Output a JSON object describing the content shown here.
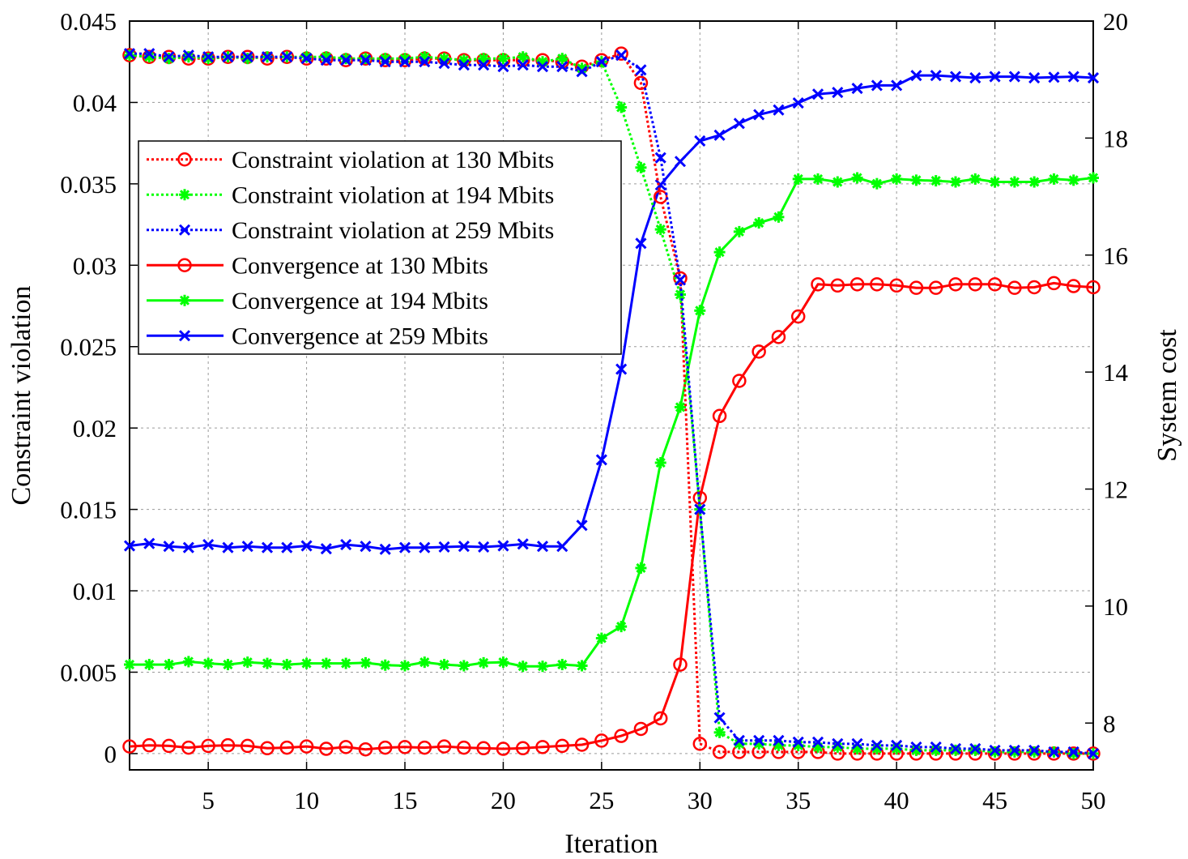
{
  "chart_data": {
    "type": "line",
    "xlabel": "Iteration",
    "ylabel_left": "Constraint violation",
    "ylabel_right": "System cost",
    "xlim": [
      1,
      50
    ],
    "ylim_left": [
      -0.001,
      0.045
    ],
    "ylim_right": [
      7.2,
      20
    ],
    "x_ticks": [
      5,
      10,
      15,
      20,
      25,
      30,
      35,
      40,
      45,
      50
    ],
    "x_tick_labels": [
      "5",
      "10",
      "15",
      "20",
      "25",
      "30",
      "35",
      "40",
      "45",
      "50"
    ],
    "y_left_ticks": [
      0,
      0.005,
      0.01,
      0.015,
      0.02,
      0.025,
      0.03,
      0.035,
      0.04,
      0.045
    ],
    "y_left_tick_labels": [
      "0",
      "0.005",
      "0.01",
      "0.015",
      "0.02",
      "0.025",
      "0.03",
      "0.035",
      "0.04",
      "0.045"
    ],
    "y_right_ticks": [
      8,
      10,
      12,
      14,
      16,
      18,
      20
    ],
    "y_right_tick_labels": [
      "8",
      "10",
      "12",
      "14",
      "16",
      "18",
      "20"
    ],
    "grid": true,
    "legend_position": "upper-left",
    "x": [
      1,
      2,
      3,
      4,
      5,
      6,
      7,
      8,
      9,
      10,
      11,
      12,
      13,
      14,
      15,
      16,
      17,
      18,
      19,
      20,
      21,
      22,
      23,
      24,
      25,
      26,
      27,
      28,
      29,
      30,
      31,
      32,
      33,
      34,
      35,
      36,
      37,
      38,
      39,
      40,
      41,
      42,
      43,
      44,
      45,
      46,
      47,
      48,
      49,
      50
    ],
    "series": [
      {
        "name": "Constraint violation at 130 Mbits",
        "axis": "left",
        "color": "#ff0000",
        "style": "dotted",
        "marker": "circle",
        "values": [
          0.0429,
          0.0428,
          0.0428,
          0.0427,
          0.0427,
          0.0428,
          0.0428,
          0.0427,
          0.0428,
          0.0427,
          0.0427,
          0.0426,
          0.0427,
          0.0426,
          0.0426,
          0.0427,
          0.0427,
          0.0426,
          0.0426,
          0.0426,
          0.0426,
          0.0426,
          0.0425,
          0.0422,
          0.0426,
          0.043,
          0.0412,
          0.0342,
          0.0292,
          0.0006,
          0.0001,
          0.0001,
          0.0001,
          0.0001,
          0.0001,
          0.0001,
          0.0,
          0.0,
          0.0,
          0.0,
          0.0,
          0.0,
          0.0,
          0.0,
          0.0,
          0.0,
          0.0,
          0.0,
          0.0,
          0.0
        ]
      },
      {
        "name": "Constraint violation at 194 Mbits",
        "axis": "left",
        "color": "#00ff00",
        "style": "dotted",
        "marker": "star",
        "values": [
          0.0429,
          0.0428,
          0.0427,
          0.0428,
          0.0427,
          0.0428,
          0.0427,
          0.0428,
          0.0428,
          0.0428,
          0.0428,
          0.0427,
          0.0427,
          0.0427,
          0.0427,
          0.0428,
          0.0427,
          0.0426,
          0.0427,
          0.0427,
          0.0428,
          0.0425,
          0.0427,
          0.0421,
          0.0425,
          0.0397,
          0.036,
          0.0322,
          0.0282,
          0.015,
          0.0013,
          0.0006,
          0.0006,
          0.0005,
          0.0005,
          0.0004,
          0.0004,
          0.0003,
          0.0003,
          0.0003,
          0.0002,
          0.0002,
          0.0002,
          0.0002,
          0.0001,
          0.0001,
          0.0001,
          0.0001,
          0.0,
          0.0
        ]
      },
      {
        "name": "Constraint violation at 259 Mbits",
        "axis": "left",
        "color": "#0000ff",
        "style": "dotted",
        "marker": "x",
        "values": [
          0.043,
          0.043,
          0.0428,
          0.0429,
          0.0428,
          0.0428,
          0.0428,
          0.0428,
          0.0428,
          0.0427,
          0.0426,
          0.0426,
          0.0426,
          0.0425,
          0.0425,
          0.0425,
          0.0424,
          0.0423,
          0.0423,
          0.0422,
          0.0423,
          0.0422,
          0.0422,
          0.0419,
          0.0425,
          0.0429,
          0.042,
          0.0366,
          0.0291,
          0.015,
          0.0022,
          0.0008,
          0.0008,
          0.0008,
          0.0007,
          0.0007,
          0.0006,
          0.0006,
          0.0005,
          0.0005,
          0.0004,
          0.0004,
          0.0003,
          0.0003,
          0.0002,
          0.0002,
          0.0002,
          0.0001,
          0.0001,
          0.0
        ]
      },
      {
        "name": "Convergence at 130 Mbits",
        "axis": "right",
        "color": "#ff0000",
        "style": "solid",
        "marker": "circle",
        "values": [
          7.6,
          7.62,
          7.61,
          7.58,
          7.61,
          7.62,
          7.61,
          7.57,
          7.58,
          7.6,
          7.56,
          7.59,
          7.55,
          7.58,
          7.59,
          7.58,
          7.6,
          7.58,
          7.57,
          7.56,
          7.57,
          7.59,
          7.61,
          7.63,
          7.7,
          7.78,
          7.9,
          8.08,
          9.0,
          11.85,
          13.25,
          13.85,
          14.35,
          14.6,
          14.95,
          15.5,
          15.48,
          15.5,
          15.5,
          15.48,
          15.44,
          15.44,
          15.5,
          15.5,
          15.5,
          15.44,
          15.45,
          15.52,
          15.47,
          15.45
        ]
      },
      {
        "name": "Convergence at 194 Mbits",
        "axis": "right",
        "color": "#00ff00",
        "style": "solid",
        "marker": "star",
        "values": [
          9.0,
          9.0,
          9.0,
          9.05,
          9.02,
          9.0,
          9.04,
          9.02,
          9.0,
          9.02,
          9.02,
          9.02,
          9.03,
          8.99,
          8.98,
          9.04,
          9.0,
          8.98,
          9.03,
          9.04,
          8.97,
          8.97,
          9.0,
          8.98,
          9.45,
          9.65,
          10.65,
          12.45,
          13.4,
          15.05,
          16.05,
          16.4,
          16.55,
          16.65,
          17.3,
          17.3,
          17.25,
          17.32,
          17.22,
          17.3,
          17.28,
          17.27,
          17.25,
          17.3,
          17.25,
          17.25,
          17.25,
          17.3,
          17.28,
          17.32
        ]
      },
      {
        "name": "Convergence at 259 Mbits",
        "axis": "right",
        "color": "#0000ff",
        "style": "solid",
        "marker": "x",
        "values": [
          11.03,
          11.07,
          11.02,
          11.0,
          11.05,
          11.0,
          11.02,
          11.0,
          11.0,
          11.03,
          10.98,
          11.05,
          11.02,
          10.97,
          11.0,
          11.0,
          11.01,
          11.02,
          11.01,
          11.03,
          11.06,
          11.02,
          11.02,
          11.38,
          12.5,
          14.05,
          16.2,
          17.2,
          17.6,
          17.95,
          18.05,
          18.25,
          18.4,
          18.48,
          18.6,
          18.75,
          18.78,
          18.85,
          18.9,
          18.9,
          19.07,
          19.07,
          19.05,
          19.03,
          19.05,
          19.05,
          19.03,
          19.04,
          19.05,
          19.03
        ]
      }
    ]
  }
}
